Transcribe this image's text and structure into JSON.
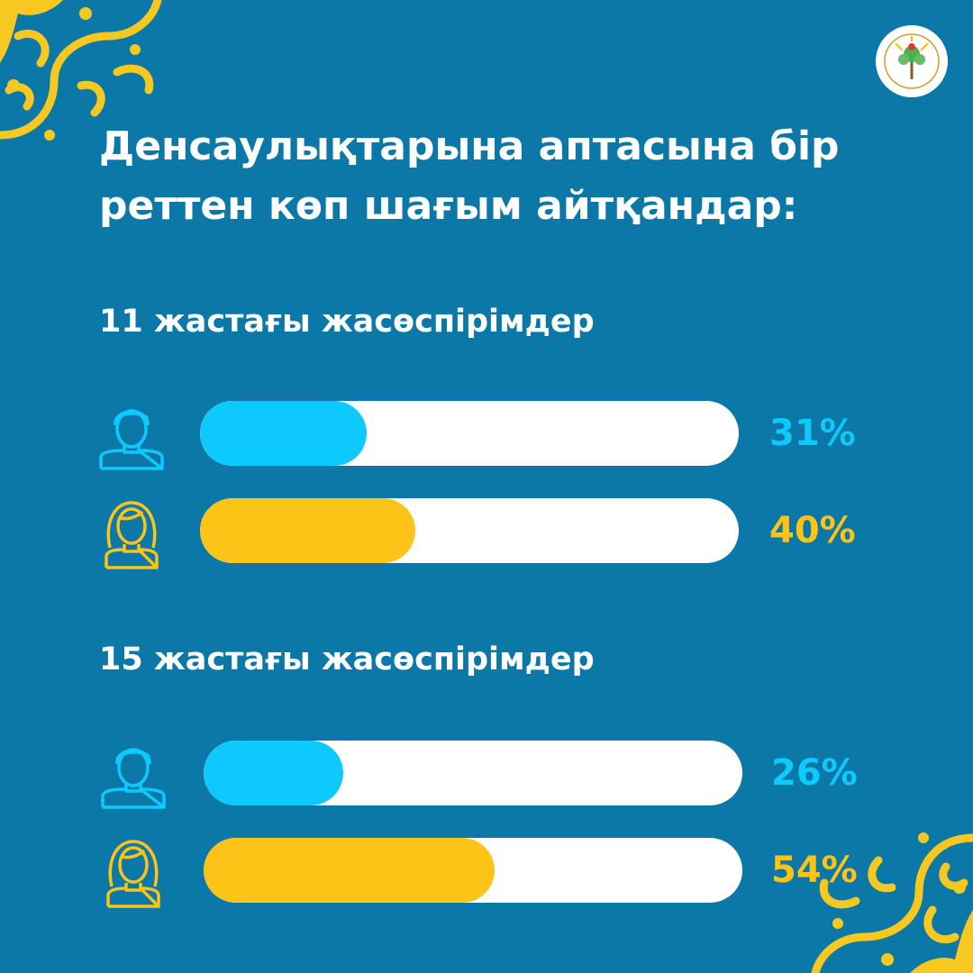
{
  "title": "Денсаулықтарына аптасына бір реттен көп шағым айтқандар:",
  "colors": {
    "background": "#0b78a8",
    "boys": "#0ec9fd",
    "girls": "#fdc316",
    "track": "#ffffff",
    "ornament": "#f7c820"
  },
  "icons": {
    "boy": "boy-outline-icon",
    "girl": "girl-outline-icon",
    "logo": "organization-logo-tree",
    "ornament": "kazakh-ornament"
  },
  "chart_data": [
    {
      "type": "bar",
      "title": "11 жастағы жасөспірімдер",
      "categories": [
        "boys",
        "girls"
      ],
      "values": [
        31,
        40
      ],
      "value_labels": [
        "31%",
        "40%"
      ],
      "unit": "%",
      "ylim": [
        0,
        100
      ]
    },
    {
      "type": "bar",
      "title": "15 жастағы жасөспірімдер",
      "categories": [
        "boys",
        "girls"
      ],
      "values": [
        26,
        54
      ],
      "value_labels": [
        "26%",
        "54%"
      ],
      "unit": "%",
      "ylim": [
        0,
        100
      ]
    }
  ]
}
